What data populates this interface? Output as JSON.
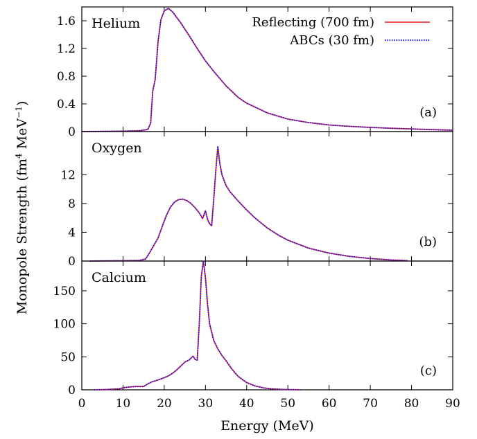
{
  "chart_data": [
    {
      "type": "line",
      "title": "Helium",
      "panel_tag": "(a)",
      "xlim": [
        0,
        90
      ],
      "ylim": [
        0,
        1.8
      ],
      "yticks": [
        "0",
        "0.4",
        "0.8",
        "1.2",
        "1.6"
      ],
      "ytick_values": [
        0,
        0.4,
        0.8,
        1.2,
        1.6
      ],
      "legend": {
        "placement": "top-right",
        "entries": [
          {
            "label": "Reflecting (700 fm)",
            "color": "#e41a1c",
            "style": "solid"
          },
          {
            "label": "ABCs (30 fm)",
            "color": "#1a1aff",
            "style": "dotted"
          }
        ]
      },
      "series": [
        {
          "name": "Reflecting (700 fm)",
          "color": "#e41a1c",
          "style": "solid",
          "x": [
            0,
            5,
            10,
            14,
            16,
            16.7,
            17.2,
            17.8,
            18.5,
            19.2,
            20,
            21,
            22,
            23,
            24,
            25,
            26,
            28,
            30,
            32,
            35,
            38,
            40,
            45,
            50,
            55,
            60,
            65,
            70,
            75,
            80,
            85,
            90
          ],
          "y": [
            0,
            0.003,
            0.006,
            0.012,
            0.03,
            0.12,
            0.58,
            0.75,
            1.3,
            1.62,
            1.74,
            1.78,
            1.73,
            1.65,
            1.57,
            1.48,
            1.39,
            1.2,
            1.02,
            0.87,
            0.66,
            0.49,
            0.41,
            0.27,
            0.18,
            0.13,
            0.095,
            0.075,
            0.06,
            0.048,
            0.038,
            0.028,
            0.02
          ]
        },
        {
          "name": "ABCs (30 fm)",
          "color": "#1a1aff",
          "style": "dotted",
          "x": [
            0,
            5,
            10,
            14,
            16,
            16.7,
            17.2,
            17.8,
            18.5,
            19.2,
            20,
            21,
            22,
            23,
            24,
            25,
            26,
            28,
            30,
            32,
            35,
            38,
            40,
            45,
            50,
            55,
            60,
            65,
            70,
            75,
            80,
            85,
            90
          ],
          "y": [
            0,
            0.003,
            0.006,
            0.012,
            0.03,
            0.12,
            0.58,
            0.75,
            1.3,
            1.62,
            1.74,
            1.78,
            1.73,
            1.65,
            1.57,
            1.48,
            1.39,
            1.2,
            1.02,
            0.87,
            0.66,
            0.49,
            0.41,
            0.27,
            0.18,
            0.13,
            0.095,
            0.075,
            0.06,
            0.048,
            0.038,
            0.028,
            0.02
          ]
        }
      ]
    },
    {
      "type": "line",
      "title": "Oxygen",
      "panel_tag": "(b)",
      "xlim": [
        0,
        90
      ],
      "ylim": [
        0,
        18
      ],
      "yticks": [
        "0",
        "4",
        "8",
        "12"
      ],
      "ytick_values": [
        0,
        4,
        8,
        12
      ],
      "series": [
        {
          "name": "Reflecting (700 fm)",
          "color": "#e41a1c",
          "style": "solid",
          "x": [
            2,
            5,
            10,
            14,
            15.5,
            16.5,
            17.5,
            18.5,
            19.5,
            20.5,
            21.5,
            22.5,
            23.5,
            24.5,
            25.5,
            26.5,
            27.5,
            28.5,
            29.3,
            30,
            30.5,
            31,
            31.5,
            32,
            32.5,
            33,
            33.5,
            34,
            35,
            36,
            38,
            40,
            42,
            45,
            48,
            50,
            55,
            60,
            65,
            70,
            75,
            79
          ],
          "y": [
            0,
            0.02,
            0.04,
            0.08,
            0.3,
            1.2,
            2.2,
            3.2,
            4.8,
            6.3,
            7.5,
            8.2,
            8.55,
            8.6,
            8.4,
            8.0,
            7.4,
            6.7,
            5.9,
            7.0,
            5.8,
            5.2,
            4.9,
            8.5,
            12.5,
            15.8,
            13.5,
            12.0,
            10.5,
            9.6,
            8.3,
            7.1,
            6.0,
            4.6,
            3.5,
            2.9,
            1.8,
            1.1,
            0.65,
            0.35,
            0.15,
            0.05
          ]
        },
        {
          "name": "ABCs (30 fm)",
          "color": "#1a1aff",
          "style": "dotted",
          "x": [
            2,
            5,
            10,
            14,
            15.5,
            16.5,
            17.5,
            18.5,
            19.5,
            20.5,
            21.5,
            22.5,
            23.5,
            24.5,
            25.5,
            26.5,
            27.5,
            28.5,
            29.3,
            30,
            30.5,
            31,
            31.5,
            32,
            32.5,
            33,
            33.5,
            34,
            35,
            36,
            38,
            40,
            42,
            45,
            48,
            50,
            55,
            60,
            65,
            70,
            75,
            79
          ],
          "y": [
            0,
            0.02,
            0.04,
            0.08,
            0.3,
            1.2,
            2.2,
            3.2,
            4.8,
            6.3,
            7.5,
            8.2,
            8.55,
            8.6,
            8.4,
            8.0,
            7.4,
            6.7,
            5.9,
            7.0,
            5.8,
            5.2,
            4.9,
            8.5,
            12.5,
            16.0,
            13.5,
            12.0,
            10.5,
            9.6,
            8.3,
            7.1,
            6.0,
            4.6,
            3.5,
            2.9,
            1.8,
            1.1,
            0.65,
            0.35,
            0.15,
            0.05
          ]
        }
      ]
    },
    {
      "type": "line",
      "title": "Calcium",
      "panel_tag": "(c)",
      "xlim": [
        0,
        90
      ],
      "ylim": [
        0,
        195
      ],
      "yticks": [
        "0",
        "50",
        "100",
        "150"
      ],
      "ytick_values": [
        0,
        50,
        100,
        150
      ],
      "xticks": [
        "0",
        "10",
        "20",
        "30",
        "40",
        "50",
        "60",
        "70",
        "80",
        "90"
      ],
      "xtick_values": [
        0,
        10,
        20,
        30,
        40,
        50,
        60,
        70,
        80,
        90
      ],
      "series": [
        {
          "name": "Reflecting (700 fm)",
          "color": "#e41a1c",
          "style": "solid",
          "x": [
            3,
            6,
            9,
            10,
            11,
            13,
            15,
            16,
            17,
            19,
            21,
            22,
            23,
            24,
            25,
            26,
            26.5,
            27,
            27.5,
            28,
            28.5,
            29,
            29.5,
            30,
            30.5,
            31,
            32,
            33,
            34,
            35,
            36,
            37,
            38,
            40,
            42,
            44,
            46,
            48,
            50,
            52,
            53
          ],
          "y": [
            0,
            0.5,
            1.5,
            3,
            4,
            5,
            5,
            9,
            12,
            16,
            21,
            25,
            30,
            36,
            42,
            45,
            48,
            51,
            46,
            45,
            100,
            172,
            195,
            170,
            130,
            100,
            75,
            62,
            52,
            44,
            35,
            27,
            20,
            11,
            6,
            3,
            1.5,
            0.8,
            0.4,
            0.2,
            0
          ]
        },
        {
          "name": "ABCs (30 fm)",
          "color": "#1a1aff",
          "style": "dotted",
          "x": [
            3,
            6,
            9,
            10,
            11,
            13,
            15,
            16,
            17,
            19,
            21,
            22,
            23,
            24,
            25,
            26,
            26.5,
            27,
            27.5,
            28,
            28.5,
            29,
            29.5,
            30,
            30.5,
            31,
            32,
            33,
            34,
            35,
            36,
            37,
            38,
            40,
            42,
            44,
            46,
            48,
            50,
            52,
            53
          ],
          "y": [
            0,
            0.5,
            1.5,
            3,
            4,
            5,
            5,
            9,
            12,
            16,
            21,
            25,
            30,
            36,
            42,
            45,
            48,
            51,
            46,
            45,
            100,
            172,
            195,
            170,
            130,
            100,
            75,
            62,
            52,
            44,
            35,
            27,
            20,
            11,
            6,
            3,
            1.5,
            0.8,
            0.4,
            0.2,
            0
          ]
        }
      ]
    }
  ],
  "axes": {
    "xlabel": "Energy (MeV)",
    "ylabel_text": "Monopole Strength (fm",
    "ylabel_sup1": "4",
    "ylabel_mid": " MeV",
    "ylabel_sup2": "−1",
    "ylabel_end": ")"
  }
}
